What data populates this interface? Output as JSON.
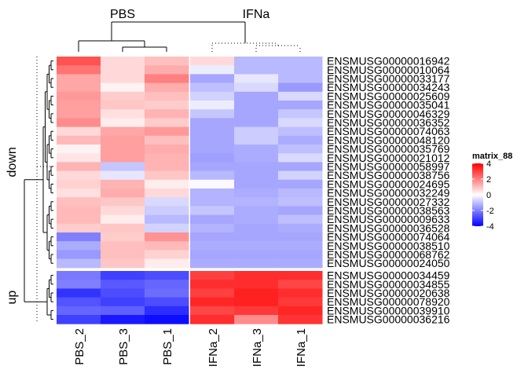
{
  "chart_data": {
    "type": "heatmap",
    "title": "",
    "legend": {
      "title": "matrix_88",
      "ticks": [
        4,
        2,
        0,
        -2,
        -4
      ],
      "range": [
        -4,
        4
      ],
      "colors": {
        "low": "#0000ff",
        "mid": "#ffffff",
        "high": "#ff0000"
      },
      "placement": "right"
    },
    "column_groups": [
      {
        "label": "PBS",
        "columns": [
          "PBS_2",
          "PBS_3",
          "PBS_1"
        ]
      },
      {
        "label": "IFNa",
        "columns": [
          "IFNa_2",
          "IFNa_3",
          "IFNa_1"
        ]
      }
    ],
    "row_groups": [
      {
        "label": "down",
        "rows": [
          {
            "id": "ENSMUSG00000016942",
            "values": [
              2.7,
              0.6,
              1.0,
              0.6,
              -1.1,
              -1.1
            ]
          },
          {
            "id": "ENSMUSG00000010064",
            "values": [
              2.2,
              0.6,
              1.3,
              -0.3,
              -1.1,
              -1.1
            ]
          },
          {
            "id": "ENSMUSG00000033177",
            "values": [
              1.4,
              0.6,
              2.0,
              -1.4,
              -0.4,
              -1.1
            ]
          },
          {
            "id": "ENSMUSG00000034243",
            "values": [
              1.4,
              0.2,
              1.3,
              -1.0,
              -0.6,
              -1.6
            ]
          },
          {
            "id": "ENSMUSG00000025609",
            "values": [
              1.6,
              0.8,
              1.0,
              -0.7,
              -1.4,
              -0.6
            ]
          },
          {
            "id": "ENSMUSG00000035041",
            "values": [
              1.5,
              0.9,
              0.8,
              -0.3,
              -1.4,
              -1.4
            ]
          },
          {
            "id": "ENSMUSG00000046329",
            "values": [
              1.5,
              0.5,
              1.2,
              -0.9,
              -1.4,
              -0.9
            ]
          },
          {
            "id": "ENSMUSG00000036352",
            "values": [
              1.8,
              0.3,
              0.8,
              -1.4,
              -1.4,
              -0.6
            ]
          },
          {
            "id": "ENSMUSG00000074063",
            "values": [
              0.6,
              1.4,
              1.6,
              -1.4,
              -0.8,
              -1.0
            ]
          },
          {
            "id": "ENSMUSG00000048120",
            "values": [
              1.1,
              1.5,
              1.0,
              -1.4,
              -0.8,
              -1.3
            ]
          },
          {
            "id": "ENSMUSG00000035769",
            "values": [
              0.2,
              1.5,
              1.3,
              -1.4,
              -1.3,
              -1.0
            ]
          },
          {
            "id": "ENSMUSG00000021012",
            "values": [
              0.4,
              1.5,
              1.2,
              -1.5,
              -1.3,
              -0.6
            ]
          },
          {
            "id": "ENSMUSG00000058997",
            "values": [
              1.2,
              -0.9,
              1.2,
              -1.4,
              -1.4,
              -1.4
            ]
          },
          {
            "id": "ENSMUSG00000038756",
            "values": [
              0.6,
              -0.4,
              0.9,
              -1.1,
              -1.4,
              -0.7
            ]
          },
          {
            "id": "ENSMUSG00000024695",
            "values": [
              0.7,
              1.2,
              0.3,
              -0.1,
              -1.4,
              -1.4
            ]
          },
          {
            "id": "ENSMUSG00000032249",
            "values": [
              0.5,
              1.3,
              0.6,
              -1.2,
              -1.3,
              -1.1
            ]
          },
          {
            "id": "ENSMUSG00000027332",
            "values": [
              1.0,
              0.9,
              -0.6,
              -1.2,
              -1.2,
              -1.0
            ]
          },
          {
            "id": "ENSMUSG00000038563",
            "values": [
              1.1,
              0.6,
              -0.8,
              -0.9,
              -1.3,
              -1.4
            ]
          },
          {
            "id": "ENSMUSG00000009633",
            "values": [
              1.1,
              0.3,
              -1.1,
              -1.4,
              -1.3,
              -1.0
            ]
          },
          {
            "id": "ENSMUSG00000036528",
            "values": [
              0.8,
              0.9,
              -0.7,
              -1.2,
              -1.4,
              -1.3
            ]
          },
          {
            "id": "ENSMUSG00000074064",
            "values": [
              -2.0,
              0.8,
              1.7,
              -1.4,
              -1.4,
              -1.4
            ]
          },
          {
            "id": "ENSMUSG00000038510",
            "values": [
              -1.3,
              1.0,
              1.1,
              -1.3,
              -1.3,
              -1.3
            ]
          },
          {
            "id": "ENSMUSG00000068762",
            "values": [
              -1.6,
              1.0,
              0.7,
              -1.4,
              -1.4,
              -1.4
            ]
          },
          {
            "id": "ENSMUSG00000024050",
            "values": [
              -1.1,
              0.9,
              0.3,
              -1.3,
              -1.3,
              -1.3
            ]
          }
        ]
      },
      {
        "label": "up",
        "rows": [
          {
            "id": "ENSMUSG00000034459",
            "values": [
              -2.1,
              -3.0,
              -2.8,
              3.0,
              3.3,
              3.3
            ]
          },
          {
            "id": "ENSMUSG00000034855",
            "values": [
              -2.0,
              -2.6,
              -2.4,
              3.3,
              3.3,
              2.9
            ]
          },
          {
            "id": "ENSMUSG00000020638",
            "values": [
              -3.2,
              -2.8,
              -2.3,
              3.0,
              3.5,
              3.3
            ]
          },
          {
            "id": "ENSMUSG00000078920",
            "values": [
              -2.7,
              -3.0,
              -2.8,
              3.4,
              3.5,
              3.1
            ]
          },
          {
            "id": "ENSMUSG00000039910",
            "values": [
              -2.4,
              -2.5,
              -3.3,
              2.9,
              3.1,
              3.4
            ]
          },
          {
            "id": "ENSMUSG00000036216",
            "values": [
              -3.0,
              -3.6,
              -3.8,
              3.3,
              1.8,
              3.2
            ]
          }
        ]
      }
    ]
  }
}
